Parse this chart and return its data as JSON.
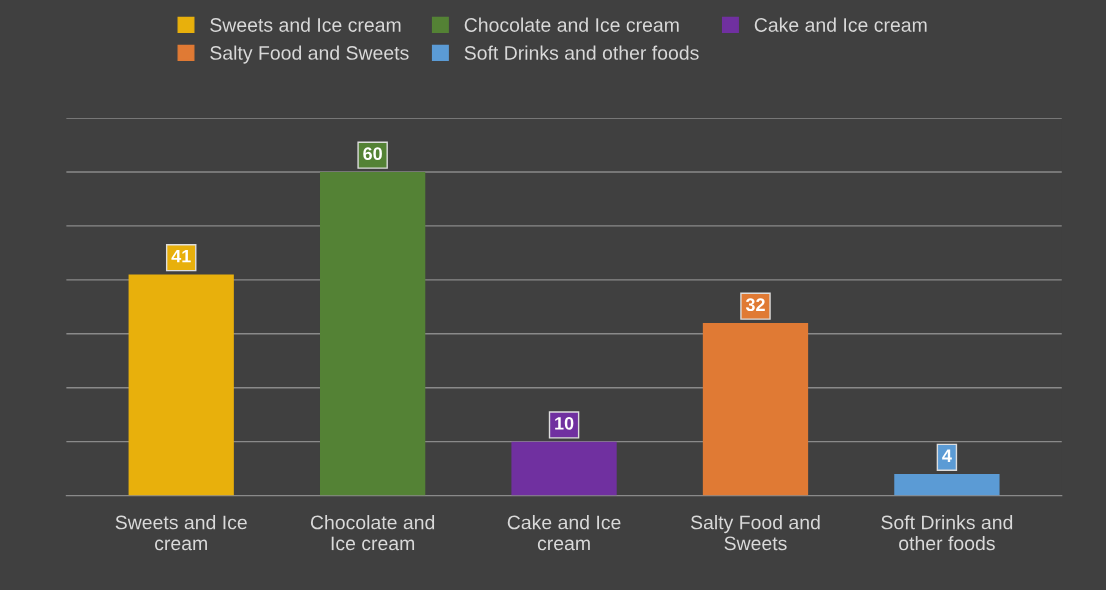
{
  "chart_data": {
    "type": "bar",
    "categories": [
      "Sweets and Ice cream",
      "Chocolate and Ice cream",
      "Cake and Ice cream",
      "Salty Food and Sweets",
      "Soft Drinks and other foods"
    ],
    "series": [
      {
        "name": "Sweets and Ice cream",
        "color": "#e8b00c",
        "values": [
          41,
          null,
          null,
          null,
          null
        ]
      },
      {
        "name": "Chocolate and Ice cream",
        "color": "#548235",
        "values": [
          null,
          60,
          null,
          null,
          null
        ]
      },
      {
        "name": "Cake and Ice cream",
        "color": "#7030a0",
        "values": [
          null,
          null,
          10,
          null,
          null
        ]
      },
      {
        "name": "Salty Food and Sweets",
        "color": "#e07a34",
        "values": [
          null,
          null,
          null,
          32,
          null
        ]
      },
      {
        "name": "Soft Drinks and other foods",
        "color": "#5b9bd5",
        "values": [
          null,
          null,
          null,
          null,
          4
        ]
      }
    ],
    "ylim": [
      0,
      70
    ],
    "yticks": [
      {
        "value": 0,
        "label": null
      },
      {
        "value": 10,
        "label": null
      },
      {
        "value": 20,
        "label": null
      },
      {
        "value": 30,
        "label": null
      },
      {
        "value": 40,
        "label": null
      },
      {
        "value": 50,
        "label": null
      },
      {
        "value": 60,
        "label": null
      },
      {
        "value": 70,
        "label": null
      }
    ],
    "tick_labels": "x",
    "grid": "y",
    "legend": "top",
    "data_labels": true
  }
}
